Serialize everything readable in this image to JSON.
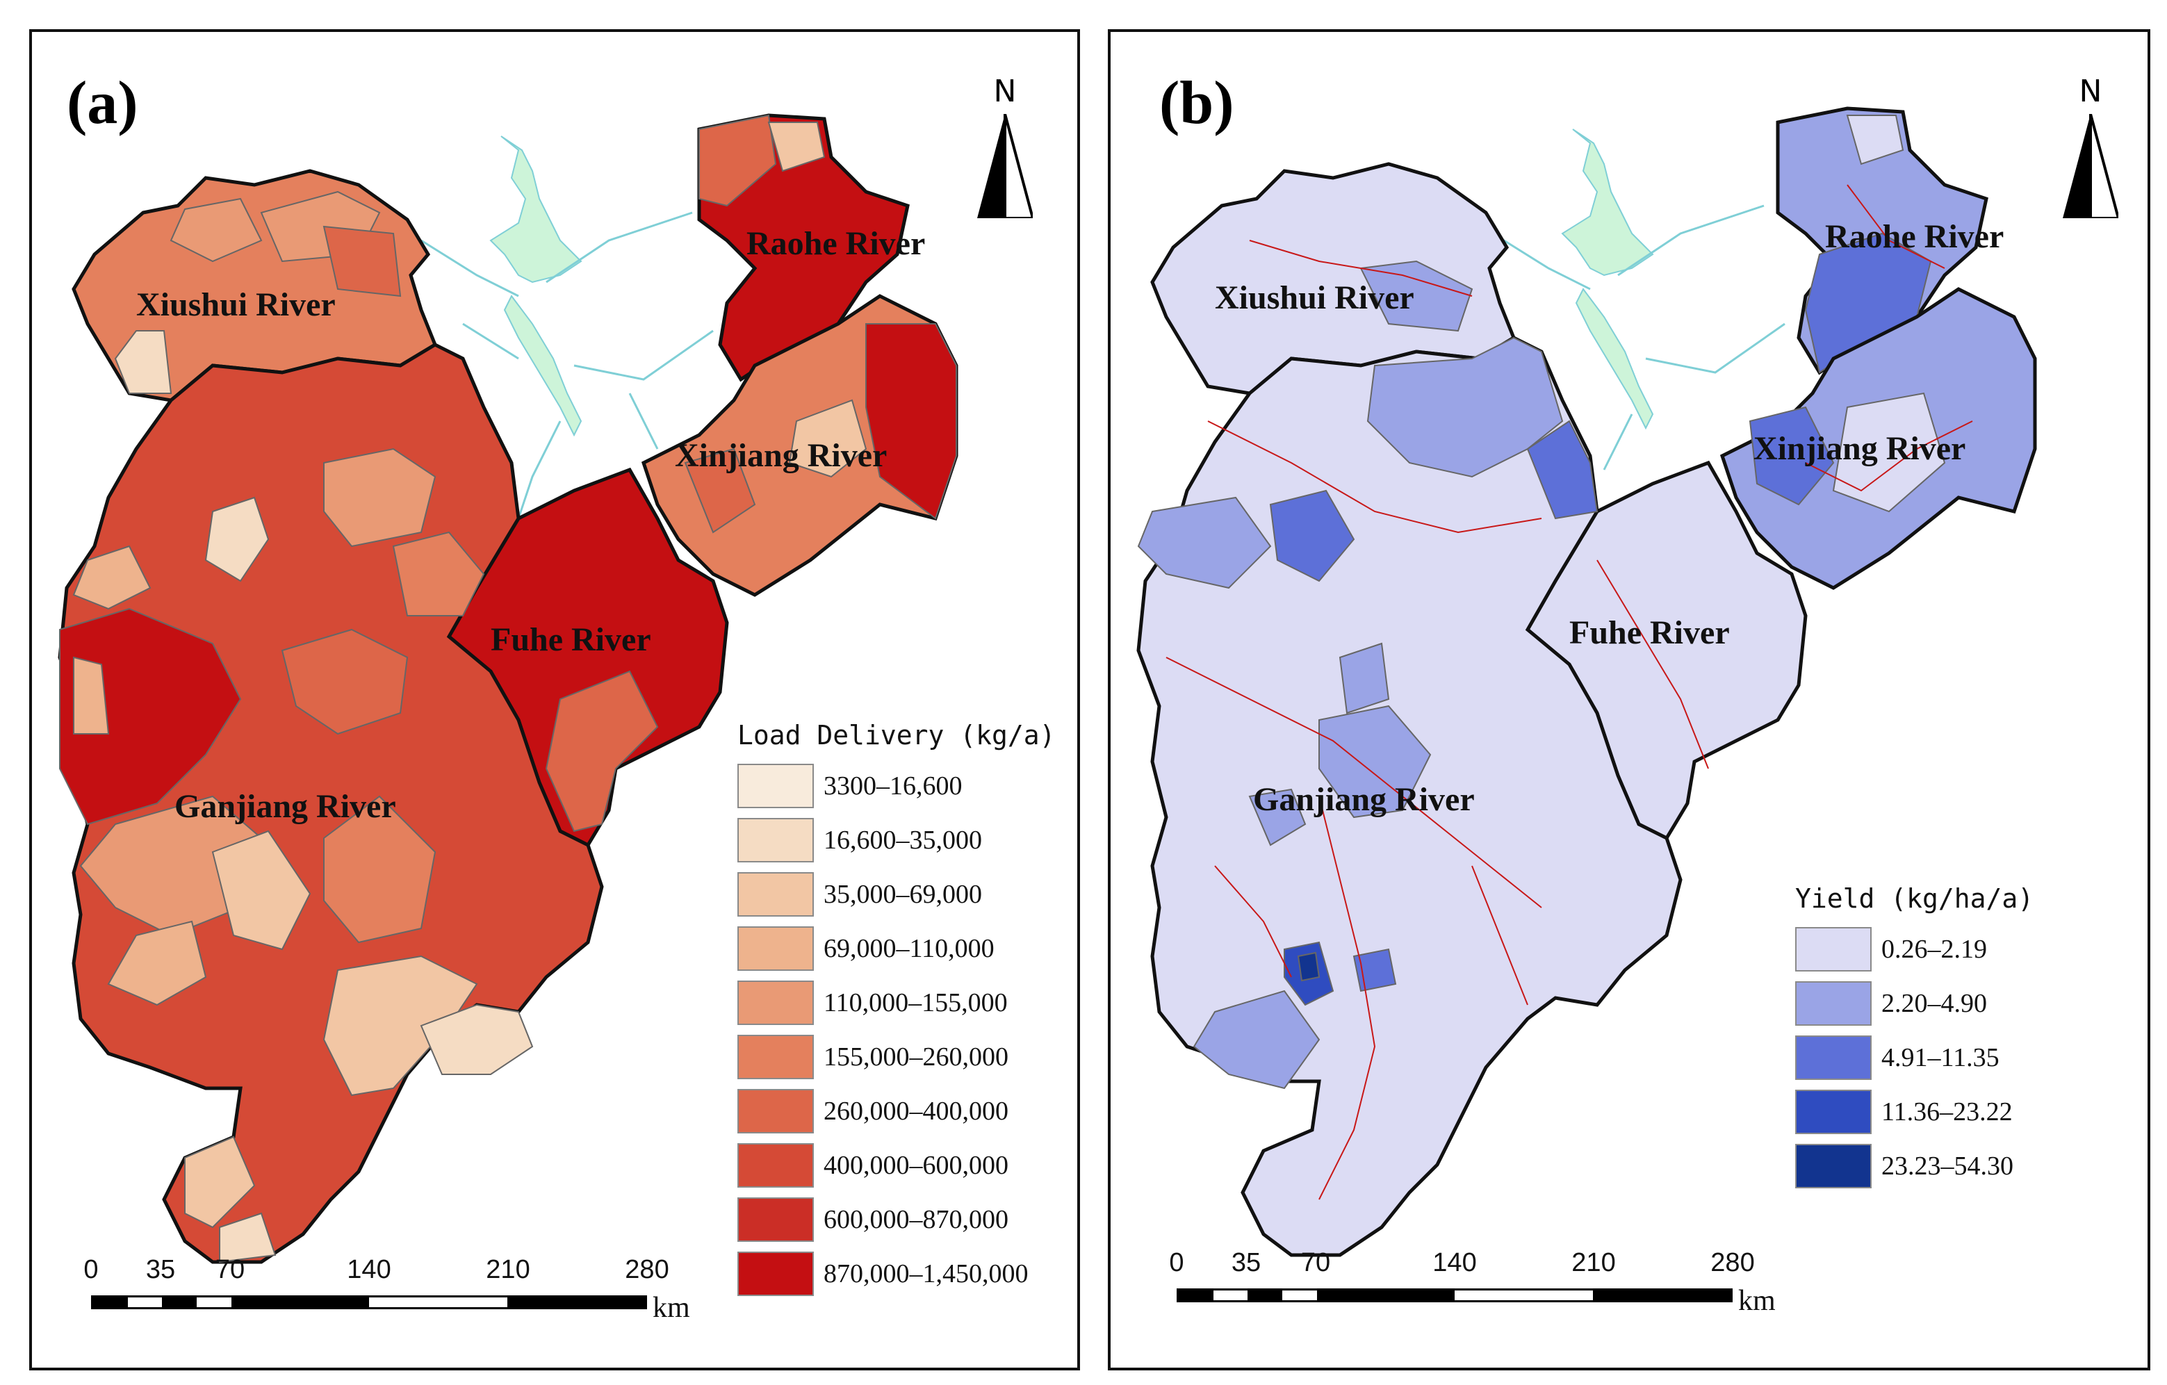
{
  "panels": [
    {
      "label": "(a)",
      "north": "N",
      "rivers": {
        "xiushui": "Xiushui River",
        "raohe": "Raohe River",
        "xinjiang": "Xinjiang River",
        "fuhe": "Fuhe River",
        "ganjiang": "Ganjiang River"
      },
      "legend": {
        "title": "Load Delivery (kg/a)",
        "items": [
          {
            "label": "3300–16,600",
            "color": "#f8ebdc"
          },
          {
            "label": "16,600–35,000",
            "color": "#f5dcc3"
          },
          {
            "label": "35,000–69,000",
            "color": "#f2c6a4"
          },
          {
            "label": "69,000–110,000",
            "color": "#eeb38d"
          },
          {
            "label": "110,000–155,000",
            "color": "#e99a75"
          },
          {
            "label": "155,000–260,000",
            "color": "#e4805d"
          },
          {
            "label": "260,000–400,000",
            "color": "#dd6649"
          },
          {
            "label": "400,000–600,000",
            "color": "#d54a36"
          },
          {
            "label": "600,000–870,000",
            "color": "#cb2e26"
          },
          {
            "label": "870,000–1,450,000",
            "color": "#c40f12"
          }
        ]
      },
      "scale": {
        "ticks": [
          "0",
          "35",
          "70",
          "140",
          "210",
          "280"
        ],
        "unit": "km"
      }
    },
    {
      "label": "(b)",
      "north": "N",
      "rivers": {
        "xiushui": "Xiushui River",
        "raohe": "Raohe River",
        "xinjiang": "Xinjiang River",
        "fuhe": "Fuhe River",
        "ganjiang": "Ganjiang River"
      },
      "legend": {
        "title": "Yield (kg/ha/a)",
        "items": [
          {
            "label": "0.26–2.19",
            "color": "#dcdcf4"
          },
          {
            "label": "2.20–4.90",
            "color": "#9aa4e6"
          },
          {
            "label": "4.91–11.35",
            "color": "#5d70d8"
          },
          {
            "label": "11.36–23.22",
            "color": "#2f4cc0"
          },
          {
            "label": "23.23–54.30",
            "color": "#12348f"
          }
        ]
      },
      "scale": {
        "ticks": [
          "0",
          "35",
          "70",
          "140",
          "210",
          "280"
        ],
        "unit": "km"
      }
    }
  ],
  "colors": {
    "lake": "#cdf4d9",
    "stream": "#7fcfd6",
    "boundary": "#111111",
    "channel": "#c81818"
  }
}
